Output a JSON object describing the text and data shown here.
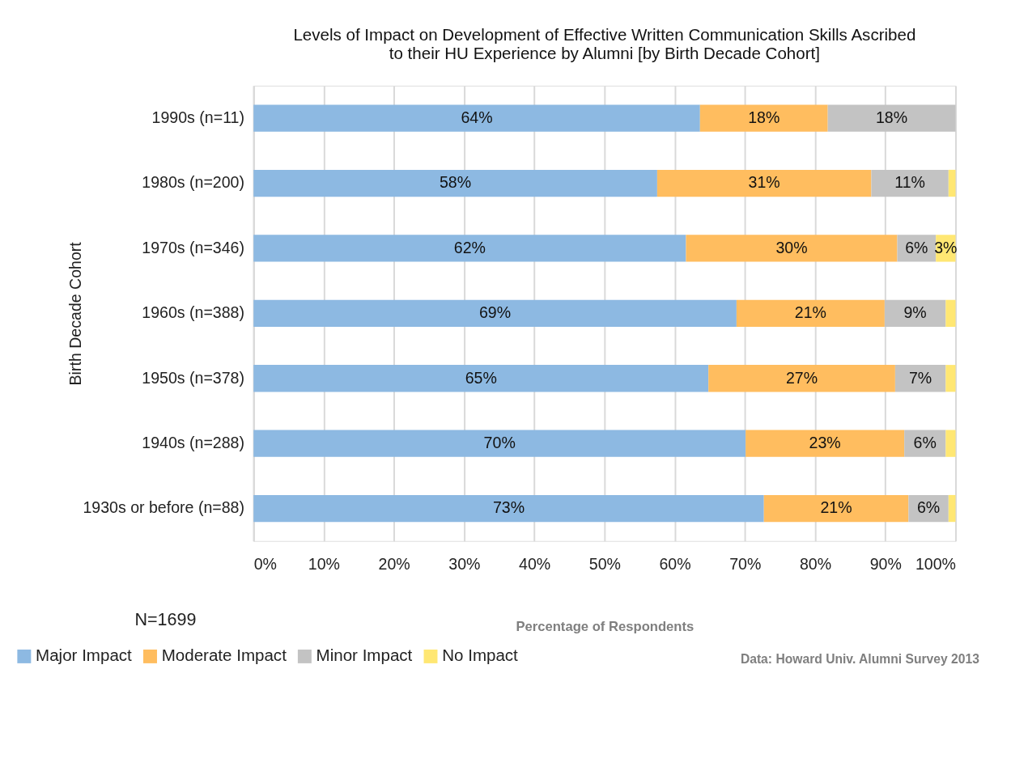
{
  "chart_data": {
    "type": "bar",
    "orientation": "horizontal",
    "stacked": true,
    "title": "Levels of Impact on Development of Effective Written Communication Skills Ascribed\nto their HU Experience by Alumni [by Birth Decade Cohort]",
    "xlabel": "Percentage of Respondents",
    "ylabel": "Birth Decade Cohort",
    "categories": [
      "1990s (n=11)",
      "1980s (n=200)",
      "1970s (n=346)",
      "1960s (n=388)",
      "1950s (n=378)",
      "1940s (n=288)",
      "1930s or before (n=88)"
    ],
    "series": [
      {
        "name": "Major Impact",
        "color": "#8db9e2",
        "values": [
          63.6,
          57.5,
          61.6,
          68.8,
          64.8,
          70.1,
          72.7
        ],
        "value_labels": [
          "64%",
          "58%",
          "62%",
          "69%",
          "65%",
          "70%",
          "73%"
        ]
      },
      {
        "name": "Moderate Impact",
        "color": "#ffbd5f",
        "values": [
          18.2,
          30.5,
          30.1,
          21.1,
          26.6,
          22.6,
          20.6
        ],
        "value_labels": [
          "18%",
          "31%",
          "30%",
          "21%",
          "27%",
          "23%",
          "21%"
        ]
      },
      {
        "name": "Minor Impact",
        "color": "#c3c3c3",
        "values": [
          18.2,
          11.0,
          5.5,
          8.7,
          7.2,
          5.9,
          5.7
        ],
        "value_labels": [
          "18%",
          "11%",
          "6%",
          "9%",
          "7%",
          "6%",
          "6%"
        ]
      },
      {
        "name": "No Impact",
        "color": "#ffe773",
        "values": [
          0,
          1.0,
          2.8,
          1.4,
          1.4,
          1.4,
          1.0
        ],
        "value_labels": [
          null,
          null,
          "3%",
          null,
          null,
          null,
          null
        ]
      }
    ],
    "xlim": [
      0,
      100
    ],
    "xticks": [
      {
        "value": 0,
        "label": "0%"
      },
      {
        "value": 10,
        "label": "10%"
      },
      {
        "value": 20,
        "label": "20%"
      },
      {
        "value": 30,
        "label": "30%"
      },
      {
        "value": 40,
        "label": "40%"
      },
      {
        "value": 50,
        "label": "50%"
      },
      {
        "value": 60,
        "label": "60%"
      },
      {
        "value": 70,
        "label": "70%"
      },
      {
        "value": 80,
        "label": "80%"
      },
      {
        "value": 90,
        "label": "90%"
      },
      {
        "value": 100,
        "label": "100%"
      }
    ],
    "grid": "x",
    "legend": "bottom",
    "annotations": [
      "N=1699",
      "Data: Howard Univ. Alumni Survey 2013"
    ]
  }
}
